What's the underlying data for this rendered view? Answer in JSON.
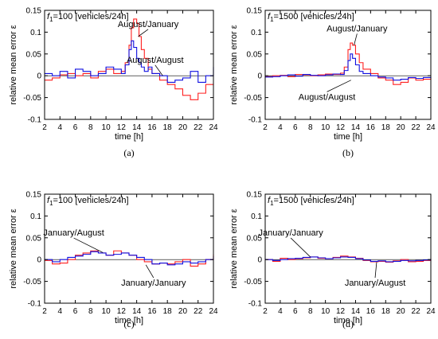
{
  "colors": {
    "red": "#ff2020",
    "blue": "#1010e0",
    "axis": "#000000"
  },
  "chart_data": [
    {
      "type": "line",
      "caption": "(a)",
      "title_prefix": "f",
      "title_sub": "1",
      "title_rest": "=100 [vehicles/24h]",
      "xlabel": "time [h]",
      "ylabel": "relative mean error ε",
      "xlim": [
        2,
        24
      ],
      "ylim": [
        -0.1,
        0.15
      ],
      "xticks": [
        "2",
        "4",
        "6",
        "8",
        "10",
        "12",
        "14",
        "16",
        "18",
        "20",
        "22",
        "24"
      ],
      "yticks": [
        "-0.1",
        "-0.05",
        "0",
        "0.05",
        "0.1",
        "0.15"
      ],
      "annotations": [
        {
          "text": "August/January",
          "x": 15.5,
          "y": 0.112,
          "ax": 14.2,
          "ay": 0.09
        },
        {
          "text": "August/August",
          "x": 16.4,
          "y": 0.03,
          "ax": 17.4,
          "ay": 0.0
        }
      ],
      "series": [
        {
          "color": "red",
          "x": [
            2,
            3,
            4,
            5,
            6,
            7,
            8,
            9,
            10,
            11,
            12,
            12.5,
            13,
            13.3,
            13.6,
            14,
            14.3,
            14.6,
            15,
            15.5,
            16,
            17,
            18,
            19,
            20,
            21,
            22,
            23,
            24
          ],
          "y": [
            -0.01,
            -0.005,
            0.002,
            0.005,
            0.0,
            0.005,
            -0.005,
            0.01,
            0.015,
            0.005,
            0.01,
            0.03,
            0.07,
            0.11,
            0.13,
            0.12,
            0.09,
            0.06,
            0.04,
            0.015,
            0.005,
            -0.01,
            -0.02,
            -0.03,
            -0.045,
            -0.055,
            -0.04,
            -0.02,
            -0.02
          ]
        },
        {
          "color": "blue",
          "x": [
            2,
            3,
            4,
            5,
            6,
            7,
            8,
            9,
            10,
            11,
            12,
            12.5,
            13,
            13.3,
            13.6,
            14,
            14.3,
            14.6,
            15,
            15.5,
            16,
            17,
            18,
            19,
            20,
            21,
            22,
            23,
            24
          ],
          "y": [
            0.005,
            0.0,
            0.01,
            -0.005,
            0.015,
            0.01,
            0.0,
            0.005,
            0.02,
            0.015,
            0.005,
            0.025,
            0.06,
            0.08,
            0.065,
            0.04,
            0.03,
            0.02,
            0.01,
            0.02,
            0.005,
            0.0,
            -0.015,
            -0.01,
            -0.005,
            0.01,
            -0.015,
            0.0,
            0.02
          ]
        }
      ]
    },
    {
      "type": "line",
      "caption": "(b)",
      "title_prefix": "f",
      "title_sub": "1",
      "title_rest": "=1500 [vehicles/24h]",
      "xlabel": "time [h]",
      "ylabel": "relative mean error ε",
      "xlim": [
        2,
        24
      ],
      "ylim": [
        -0.1,
        0.15
      ],
      "xticks": [
        "2",
        "4",
        "6",
        "8",
        "10",
        "12",
        "14",
        "16",
        "18",
        "20",
        "22",
        "24"
      ],
      "yticks": [
        "-0.1",
        "-0.05",
        "0",
        "0.05",
        "0.1",
        "0.15"
      ],
      "annotations": [
        {
          "text": "August/January",
          "x": 14.2,
          "y": 0.102,
          "ax": 13.8,
          "ay": 0.07
        },
        {
          "text": "August/August",
          "x": 10.2,
          "y": -0.055,
          "ax": 13.4,
          "ay": -0.01
        }
      ],
      "series": [
        {
          "color": "red",
          "x": [
            2,
            3,
            4,
            5,
            6,
            7,
            8,
            9,
            10,
            11,
            12,
            12.5,
            13,
            13.3,
            13.6,
            14,
            14.5,
            15,
            16,
            17,
            18,
            19,
            20,
            21,
            22,
            23,
            24
          ],
          "y": [
            -0.002,
            0.0,
            0.001,
            -0.002,
            0.003,
            0.002,
            0.0,
            0.002,
            0.004,
            0.003,
            0.006,
            0.02,
            0.06,
            0.075,
            0.07,
            0.05,
            0.03,
            0.015,
            0.005,
            -0.005,
            -0.01,
            -0.02,
            -0.015,
            -0.005,
            -0.01,
            -0.008,
            -0.005
          ]
        },
        {
          "color": "blue",
          "x": [
            2,
            3,
            4,
            5,
            6,
            7,
            8,
            9,
            10,
            11,
            12,
            12.5,
            13,
            13.3,
            13.6,
            14,
            14.5,
            15,
            16,
            17,
            18,
            19,
            20,
            21,
            22,
            23,
            24
          ],
          "y": [
            -0.003,
            -0.002,
            0.0,
            0.002,
            -0.001,
            0.003,
            0.001,
            0.0,
            0.002,
            0.004,
            0.003,
            0.012,
            0.035,
            0.05,
            0.04,
            0.025,
            0.01,
            0.005,
            0.0,
            -0.003,
            -0.005,
            -0.01,
            -0.008,
            -0.004,
            -0.006,
            -0.004,
            -0.003
          ]
        }
      ]
    },
    {
      "type": "line",
      "caption": "(c)",
      "title_prefix": "f",
      "title_sub": "1",
      "title_rest": "=100 [vehicles/24h]",
      "xlabel": "time [h]",
      "ylabel": "relative mean error ε",
      "xlim": [
        2,
        24
      ],
      "ylim": [
        -0.1,
        0.15
      ],
      "xticks": [
        "2",
        "4",
        "6",
        "8",
        "10",
        "12",
        "14",
        "16",
        "18",
        "20",
        "22",
        "24"
      ],
      "yticks": [
        "-0.1",
        "-0.05",
        "0",
        "0.05",
        "0.1",
        "0.15"
      ],
      "annotations": [
        {
          "text": "January/August",
          "x": 5.8,
          "y": 0.055,
          "ax": 9.6,
          "ay": 0.016
        },
        {
          "text": "January/January",
          "x": 16.2,
          "y": -0.06,
          "ax": 15.2,
          "ay": -0.012
        }
      ],
      "series": [
        {
          "color": "red",
          "x": [
            2,
            3,
            4,
            5,
            6,
            7,
            8,
            9,
            10,
            11,
            12,
            13,
            14,
            15,
            16,
            17,
            18,
            19,
            20,
            21,
            22,
            23,
            24
          ],
          "y": [
            -0.002,
            -0.01,
            -0.008,
            0.0,
            0.01,
            0.015,
            0.02,
            0.015,
            0.01,
            0.02,
            0.015,
            0.01,
            0.0,
            -0.005,
            -0.01,
            -0.008,
            -0.01,
            -0.005,
            0.0,
            -0.015,
            -0.01,
            0.0,
            0.012
          ]
        },
        {
          "color": "blue",
          "x": [
            2,
            3,
            4,
            5,
            6,
            7,
            8,
            9,
            10,
            11,
            12,
            13,
            14,
            15,
            16,
            17,
            18,
            19,
            20,
            21,
            22,
            23,
            24
          ],
          "y": [
            0.0,
            -0.005,
            0.0,
            0.005,
            0.008,
            0.012,
            0.018,
            0.015,
            0.01,
            0.012,
            0.015,
            0.01,
            0.005,
            0.0,
            -0.01,
            -0.008,
            -0.012,
            -0.01,
            -0.005,
            -0.008,
            -0.005,
            0.0,
            0.008
          ]
        }
      ]
    },
    {
      "type": "line",
      "caption": "(d)",
      "title_prefix": "f",
      "title_sub": "1",
      "title_rest": "=1500 [vehicles/24h]",
      "xlabel": "time [h]",
      "ylabel": "relative mean error ε",
      "xlim": [
        2,
        24
      ],
      "ylim": [
        -0.1,
        0.15
      ],
      "xticks": [
        "2",
        "4",
        "6",
        "8",
        "10",
        "12",
        "14",
        "16",
        "18",
        "20",
        "22",
        "24"
      ],
      "yticks": [
        "-0.1",
        "-0.05",
        "0",
        "0.05",
        "0.1",
        "0.15"
      ],
      "annotations": [
        {
          "text": "January/January",
          "x": 5.4,
          "y": 0.055,
          "ax": 8.0,
          "ay": 0.006
        },
        {
          "text": "January/August",
          "x": 16.6,
          "y": -0.06,
          "ax": 16.8,
          "ay": -0.006
        }
      ],
      "series": [
        {
          "color": "red",
          "x": [
            2,
            3,
            4,
            5,
            6,
            7,
            8,
            9,
            10,
            11,
            12,
            13,
            14,
            15,
            16,
            17,
            18,
            19,
            20,
            21,
            22,
            23,
            24
          ],
          "y": [
            0.0,
            -0.004,
            0.003,
            0.0,
            0.002,
            0.004,
            0.006,
            0.003,
            0.002,
            0.005,
            0.008,
            0.006,
            0.003,
            -0.002,
            -0.005,
            -0.004,
            -0.006,
            -0.003,
            0.0,
            -0.005,
            -0.004,
            -0.002,
            0.002
          ]
        },
        {
          "color": "blue",
          "x": [
            2,
            3,
            4,
            5,
            6,
            7,
            8,
            9,
            10,
            11,
            12,
            13,
            14,
            15,
            16,
            17,
            18,
            19,
            20,
            21,
            22,
            23,
            24
          ],
          "y": [
            0.0,
            -0.002,
            0.0,
            0.002,
            0.003,
            0.005,
            0.006,
            0.004,
            0.002,
            0.004,
            0.006,
            0.005,
            0.002,
            -0.001,
            -0.004,
            -0.003,
            -0.005,
            -0.004,
            -0.002,
            -0.003,
            -0.002,
            -0.001,
            0.001
          ]
        }
      ]
    }
  ]
}
